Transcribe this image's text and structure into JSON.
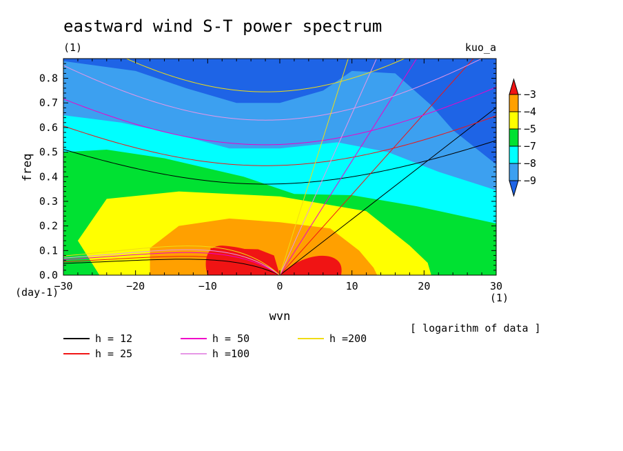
{
  "chart_data": {
    "type": "heatmap",
    "title": "eastward wind S-T power spectrum",
    "subtitle_left": "(1)",
    "subtitle_right": "kuo_a",
    "xlabel": "wvn",
    "ylabel": "freq",
    "x_unit": "(1)",
    "y_unit": "(day-1)",
    "note": "[ logarithm of data ]",
    "xlim": [
      -30,
      30
    ],
    "ylim": [
      0,
      0.88
    ],
    "x_ticks": [
      -30,
      -20,
      -10,
      0,
      10,
      20,
      30
    ],
    "x_tick_labels": [
      "−30",
      "−20",
      "−10",
      "0",
      "10",
      "20",
      "30"
    ],
    "y_ticks": [
      0,
      0.1,
      0.2,
      0.3,
      0.4,
      0.5,
      0.6,
      0.7,
      0.8
    ],
    "y_tick_labels": [
      "0.0",
      "0.1",
      "0.2",
      "0.3",
      "0.4",
      "0.5",
      "0.6",
      "0.7",
      "0.8"
    ],
    "colorbar": {
      "levels": [
        -9,
        -8,
        -7,
        -5,
        -4,
        -3
      ],
      "labels": [
        "−9",
        "−8",
        "−7",
        "−5",
        "−4",
        "−3"
      ],
      "colors": [
        "#1e64e6",
        "#3ca0f0",
        "#00ffff",
        "#00e132",
        "#ffff00",
        "#ffa000",
        "#f01414"
      ]
    },
    "contour_fill_boundaries": [
      {
        "level": -3,
        "points": [
          [
            0,
            0
          ],
          [
            -1.5,
            0.07
          ],
          [
            -5,
            0.105
          ],
          [
            -9,
            0.12
          ],
          [
            -10,
            0.1
          ],
          [
            -10.3,
            0.05
          ],
          [
            -10,
            0
          ],
          [
            0,
            0
          ],
          [
            3,
            0.08
          ],
          [
            6,
            0.08
          ],
          [
            8.5,
            0.04
          ],
          [
            8.5,
            0
          ]
        ]
      },
      {
        "level": -4,
        "points": [
          [
            -18,
            0
          ],
          [
            -18,
            0.11
          ],
          [
            -14,
            0.2
          ],
          [
            -7,
            0.23
          ],
          [
            0,
            0.215
          ],
          [
            7,
            0.19
          ],
          [
            11,
            0.1
          ],
          [
            13,
            0.03
          ],
          [
            13.5,
            0
          ]
        ]
      },
      {
        "level": -5,
        "points": [
          [
            -25,
            0
          ],
          [
            -28,
            0.14
          ],
          [
            -24,
            0.31
          ],
          [
            -14,
            0.34
          ],
          [
            0,
            0.32
          ],
          [
            12,
            0.26
          ],
          [
            18,
            0.12
          ],
          [
            20.5,
            0.05
          ],
          [
            21,
            0
          ]
        ]
      },
      {
        "level": -7,
        "points": [
          [
            -30,
            0.5
          ],
          [
            -24,
            0.51
          ],
          [
            -16,
            0.475
          ],
          [
            -5,
            0.4
          ],
          [
            2,
            0.33
          ],
          [
            10,
            0.325
          ],
          [
            19,
            0.28
          ],
          [
            30,
            0.21
          ]
        ]
      },
      {
        "level": -8,
        "points": [
          [
            -30,
            0.65
          ],
          [
            -22,
            0.62
          ],
          [
            -14,
            0.57
          ],
          [
            -7,
            0.515
          ],
          [
            0,
            0.515
          ],
          [
            8,
            0.54
          ],
          [
            15,
            0.5
          ],
          [
            22,
            0.42
          ],
          [
            30,
            0.345
          ]
        ]
      },
      {
        "level": -9,
        "points": [
          [
            -30,
            0.87
          ],
          [
            -20,
            0.83
          ],
          [
            -13,
            0.76
          ],
          [
            -6,
            0.7
          ],
          [
            0,
            0.7
          ],
          [
            6,
            0.75
          ],
          [
            10,
            0.83
          ],
          [
            16,
            0.82
          ],
          [
            21,
            0.69
          ],
          [
            24,
            0.59
          ],
          [
            30,
            0.45
          ]
        ]
      }
    ],
    "series": [
      {
        "name": "h = 12",
        "color": "#000000",
        "top": 0.37,
        "k": 0.0126,
        "lat": 0.065,
        "kelvin_slope": 0.0227
      },
      {
        "name": "h = 25",
        "color": "#f01414",
        "top": 0.445,
        "k": 0.0147,
        "lat": 0.078,
        "kelvin_slope": 0.0328
      },
      {
        "name": "h = 50",
        "color": "#f000c8",
        "top": 0.53,
        "k": 0.0172,
        "lat": 0.095,
        "kelvin_slope": 0.0464
      },
      {
        "name": "h =100",
        "color": "#e696e6",
        "top": 0.63,
        "k": 0.0205,
        "lat": 0.108,
        "kelvin_slope": 0.0656
      },
      {
        "name": "h =200",
        "color": "#f0dc14",
        "top": 0.745,
        "k": 0.0243,
        "lat": 0.125,
        "kelvin_slope": 0.0928
      }
    ]
  }
}
